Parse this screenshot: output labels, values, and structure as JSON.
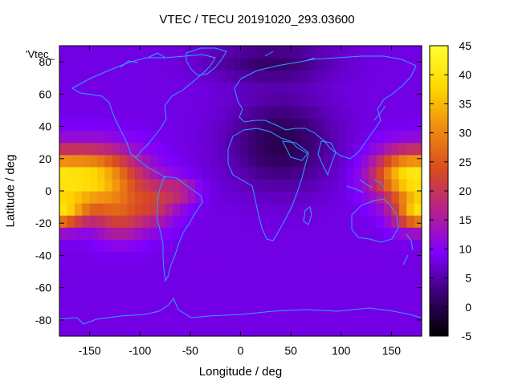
{
  "chart_data": {
    "type": "heatmap",
    "title": "VTEC / TECU 20191020_293.03600",
    "xlabel": "Longitude / deg",
    "ylabel": "Latitude / deg",
    "key_label": "'Vtec_",
    "xlim": [
      -180,
      180
    ],
    "ylim": [
      -90,
      90
    ],
    "x_ticks": [
      -150,
      -100,
      -50,
      0,
      50,
      100,
      150
    ],
    "y_ticks": [
      -80,
      -60,
      -40,
      -20,
      0,
      20,
      40,
      60,
      80
    ],
    "colorbar": {
      "range": [
        -5,
        45
      ],
      "ticks": [
        -5,
        0,
        5,
        10,
        15,
        20,
        25,
        30,
        35,
        40,
        45
      ],
      "palette": [
        "#000000",
        "#3a0070",
        "#7f00ff",
        "#b5208f",
        "#d84a20",
        "#ef8b10",
        "#ffd800",
        "#ffff30"
      ]
    },
    "map_line_color": "#2fa0ff",
    "grid": false,
    "field_components": {
      "background": 8,
      "anomalies": [
        {
          "lon": -150,
          "lat": 8,
          "peak": 30,
          "radius_lon": 48,
          "radius_lat": 18
        },
        {
          "lon": -175,
          "lat": -12,
          "peak": 18,
          "radius_lon": 25,
          "radius_lat": 10
        },
        {
          "lon": -120,
          "lat": -15,
          "peak": 12,
          "radius_lon": 25,
          "radius_lat": 15
        },
        {
          "lon": -85,
          "lat": -8,
          "peak": 10,
          "radius_lon": 22,
          "radius_lat": 14
        },
        {
          "lon": -60,
          "lat": 0,
          "peak": 8,
          "radius_lon": 18,
          "radius_lat": 8
        },
        {
          "lon": 160,
          "lat": 10,
          "peak": 20,
          "radius_lon": 30,
          "radius_lat": 15
        },
        {
          "lon": 170,
          "lat": -15,
          "peak": 10,
          "radius_lon": 20,
          "radius_lat": 10
        },
        {
          "lon": 40,
          "lat": 30,
          "peak": -8,
          "radius_lon": 50,
          "radius_lat": 28
        },
        {
          "lon": 30,
          "lat": 80,
          "peak": -6,
          "radius_lon": 60,
          "radius_lat": 12
        }
      ]
    }
  }
}
